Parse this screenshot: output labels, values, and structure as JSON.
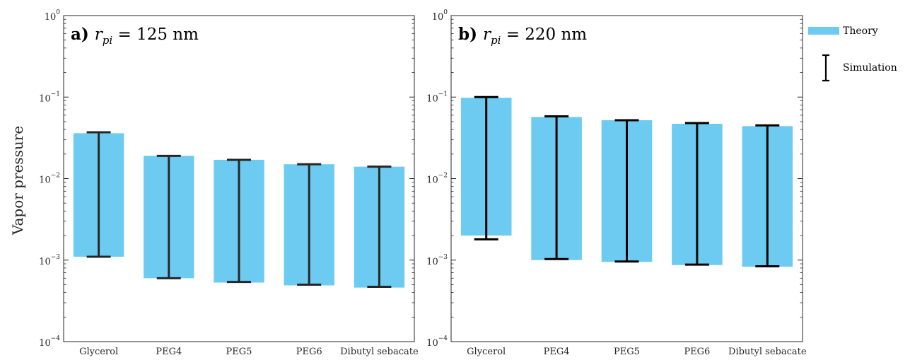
{
  "ylabel": "Vapor pressure",
  "legend": {
    "theory": "Theory",
    "simulation": "Simulation",
    "theory_color": "#6DCBF2",
    "simulation_color": "#000000"
  },
  "chart_data": [
    {
      "type": "bar",
      "panel": "a)",
      "var": "r",
      "sub": "pi",
      "eq": "= 125 nm",
      "scale": "log",
      "ylim": [
        0.0001,
        1
      ],
      "yticks": [
        {
          "base": "10",
          "exp": "0",
          "value": 1
        },
        {
          "base": "10",
          "exp": "−1",
          "value": 0.1
        },
        {
          "base": "10",
          "exp": "−2",
          "value": 0.01
        },
        {
          "base": "10",
          "exp": "−3",
          "value": 0.001
        },
        {
          "base": "10",
          "exp": "−4",
          "value": 0.0001
        }
      ],
      "categories": [
        "Glycerol",
        "PEG4",
        "PEG5",
        "PEG6",
        "Dibutyl sebacate"
      ],
      "theory": {
        "low": [
          0.0011,
          0.0006,
          0.00053,
          0.00049,
          0.00046
        ],
        "high": [
          0.036,
          0.019,
          0.017,
          0.015,
          0.014
        ]
      },
      "simulation": {
        "low": [
          0.0011,
          0.0006,
          0.00054,
          0.0005,
          0.00047
        ],
        "high": [
          0.037,
          0.019,
          0.017,
          0.015,
          0.014
        ]
      },
      "errorbar_color": "#262626"
    },
    {
      "type": "bar",
      "panel": "b)",
      "var": "r",
      "sub": "pi",
      "eq": "= 220 nm",
      "scale": "log",
      "ylim": [
        0.0001,
        1
      ],
      "yticks": [
        {
          "base": "10",
          "exp": "0",
          "value": 1
        },
        {
          "base": "10",
          "exp": "−1",
          "value": 0.1
        },
        {
          "base": "10",
          "exp": "−2",
          "value": 0.01
        },
        {
          "base": "10",
          "exp": "−3",
          "value": 0.001
        },
        {
          "base": "10",
          "exp": "−4",
          "value": 0.0001
        }
      ],
      "categories": [
        "Glycerol",
        "PEG4",
        "PEG5",
        "PEG6",
        "Dibutyl sebacate"
      ],
      "theory": {
        "low": [
          0.002,
          0.001,
          0.00095,
          0.00087,
          0.00083
        ],
        "high": [
          0.098,
          0.057,
          0.052,
          0.047,
          0.044
        ]
      },
      "simulation": {
        "low": [
          0.0018,
          0.00103,
          0.00096,
          0.00088,
          0.00084
        ],
        "high": [
          0.1,
          0.058,
          0.052,
          0.048,
          0.045
        ]
      },
      "errorbar_color": "#000000"
    }
  ]
}
